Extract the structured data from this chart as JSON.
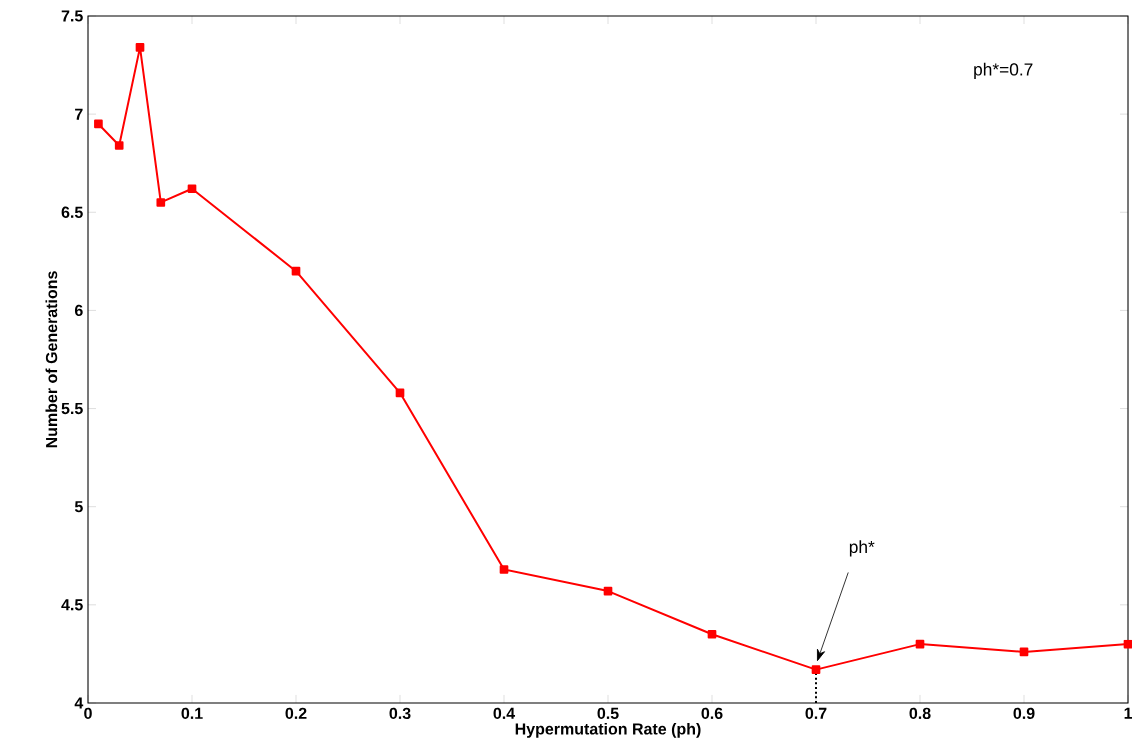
{
  "chart_data": {
    "type": "line",
    "xlabel": "Hypermutation Rate (ph)",
    "ylabel": "Number of Generations",
    "x": [
      0.01,
      0.03,
      0.05,
      0.07,
      0.1,
      0.2,
      0.3,
      0.4,
      0.5,
      0.6,
      0.7,
      0.8,
      0.9,
      1.0
    ],
    "series": [
      {
        "color": "#ff0000",
        "values": [
          6.95,
          6.84,
          7.34,
          6.55,
          6.62,
          6.2,
          5.58,
          4.68,
          4.57,
          4.35,
          4.17,
          4.3,
          4.26,
          4.3
        ]
      },
      {
        "color": "#000000",
        "x": [
          0.7,
          0.7
        ],
        "values": [
          4,
          4.17
        ],
        "marker": "none",
        "line_style": "dotted"
      }
    ],
    "xlim": [
      0,
      1
    ],
    "ylim": [
      4,
      7.5
    ],
    "xticks": [
      0,
      0.1,
      0.2,
      0.3,
      0.4,
      0.5,
      0.6,
      0.7,
      0.8,
      0.9,
      1
    ],
    "yticks": [
      4,
      4.5,
      5,
      5.5,
      6,
      6.5,
      7,
      7.5
    ],
    "marker": "square",
    "line_style": "solid",
    "grid": false,
    "annotations": [
      "ph*=0.7",
      "ph*"
    ]
  }
}
